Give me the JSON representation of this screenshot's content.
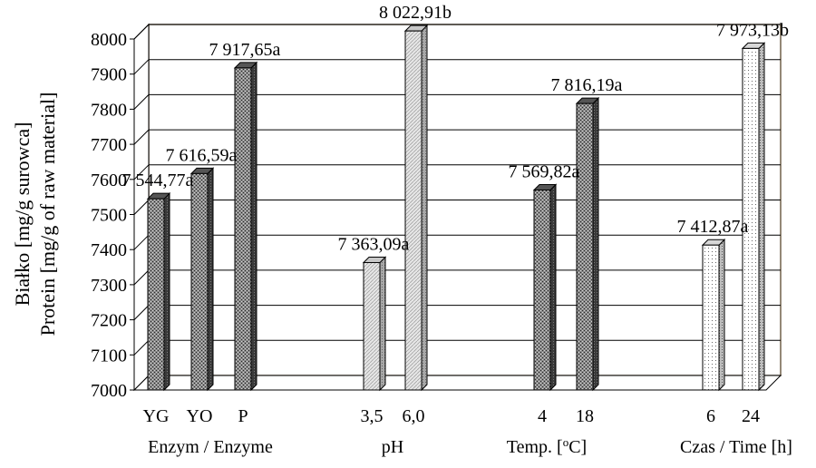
{
  "chart_data": {
    "type": "bar",
    "ylabel_line1": "Białko [mg/g surowca]",
    "ylabel_line2": "Protein [mg/g of raw material]",
    "ylim": [
      7000,
      8000
    ],
    "yticks": [
      "7000",
      "7100",
      "7200",
      "7300",
      "7400",
      "7500",
      "7600",
      "7700",
      "7800",
      "7900",
      "8000"
    ],
    "grid": true,
    "groups": [
      {
        "label": "Enzym / Enzyme",
        "fill": "dark",
        "bars": [
          {
            "category": "YG",
            "value": 7544.77,
            "label": "7 544,77a"
          },
          {
            "category": "YO",
            "value": 7616.59,
            "label": "7 616,59a"
          },
          {
            "category": "P",
            "value": 7917.65,
            "label": "7 917,65a"
          }
        ]
      },
      {
        "label": "pH",
        "fill": "light",
        "bars": [
          {
            "category": "3,5",
            "value": 7363.09,
            "label": "7 363,09a"
          },
          {
            "category": "6,0",
            "value": 8022.91,
            "label": "8 022,91b"
          }
        ]
      },
      {
        "label": "Temp. [°C]",
        "label_parts": [
          "Temp. [",
          "o",
          "C]"
        ],
        "fill": "dark",
        "bars": [
          {
            "category": "4",
            "value": 7569.82,
            "label": "7 569,82a"
          },
          {
            "category": "18",
            "value": 7816.19,
            "label": "7 816,19a"
          }
        ]
      },
      {
        "label": "Czas / Time [h]",
        "fill": "dots",
        "bars": [
          {
            "category": "6",
            "value": 7412.87,
            "label": "7 412,87a"
          },
          {
            "category": "24",
            "value": 7973.13,
            "label": "7 973,13b"
          }
        ]
      }
    ]
  }
}
